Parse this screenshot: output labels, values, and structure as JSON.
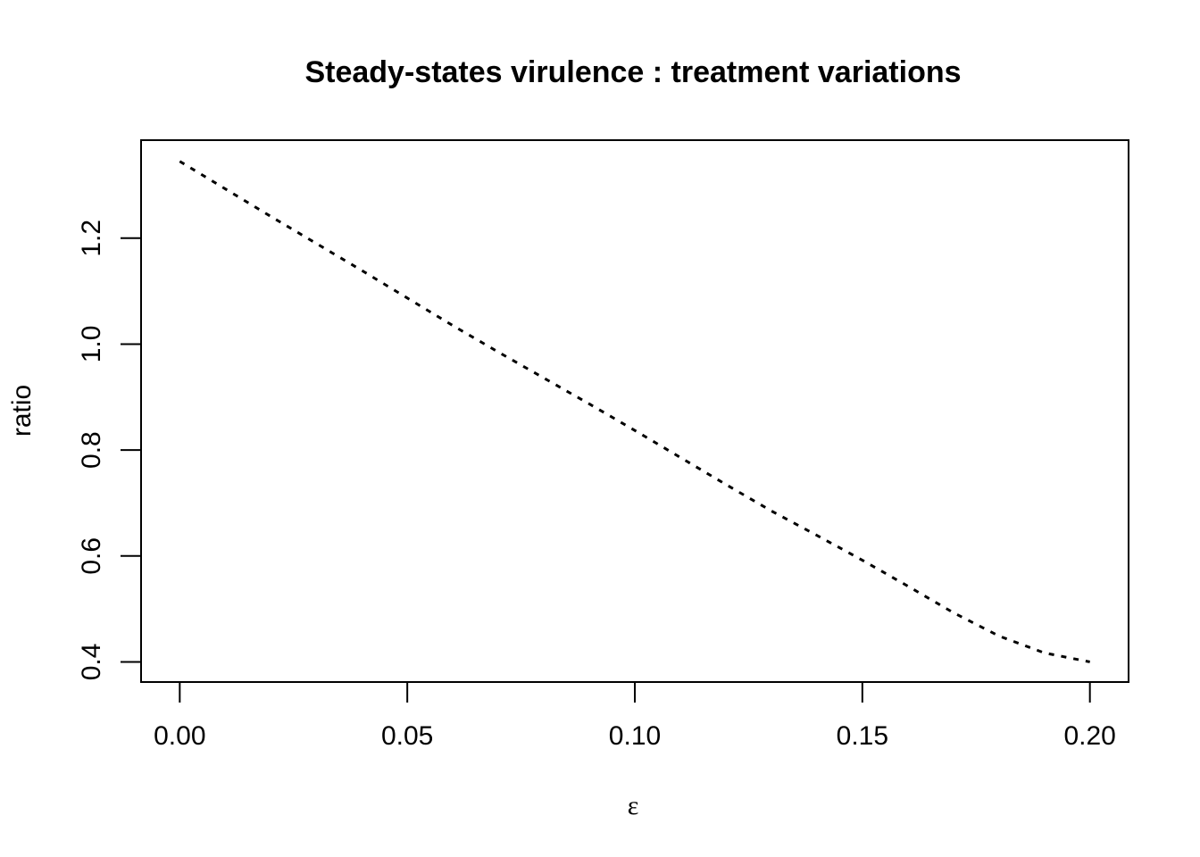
{
  "chart_data": {
    "type": "line",
    "title": "Steady-states virulence : treatment variations",
    "xlabel": "ε",
    "ylabel": "ratio",
    "xlim": [
      -0.0085,
      0.2085
    ],
    "ylim": [
      0.362,
      1.385
    ],
    "x_ticks": [
      {
        "value": 0.0,
        "label": "0.00"
      },
      {
        "value": 0.05,
        "label": "0.05"
      },
      {
        "value": 0.1,
        "label": "0.10"
      },
      {
        "value": 0.15,
        "label": "0.15"
      },
      {
        "value": 0.2,
        "label": "0.20"
      }
    ],
    "y_ticks": [
      {
        "value": 0.4,
        "label": "0.4"
      },
      {
        "value": 0.6,
        "label": "0.6"
      },
      {
        "value": 0.8,
        "label": "0.8"
      },
      {
        "value": 1.0,
        "label": "1.0"
      },
      {
        "value": 1.2,
        "label": "1.2"
      }
    ],
    "grid": false,
    "legend": "none",
    "series": [
      {
        "line_style": "dotted",
        "color": "#000000",
        "x": [
          0.0,
          0.01,
          0.02,
          0.03,
          0.04,
          0.05,
          0.06,
          0.07,
          0.08,
          0.09,
          0.1,
          0.11,
          0.12,
          0.13,
          0.14,
          0.15,
          0.16,
          0.17,
          0.18,
          0.19,
          0.2
        ],
        "y": [
          1.345,
          1.293,
          1.241,
          1.19,
          1.139,
          1.087,
          1.035,
          0.985,
          0.936,
          0.887,
          0.837,
          0.786,
          0.735,
          0.685,
          0.639,
          0.592,
          0.543,
          0.493,
          0.449,
          0.417,
          0.4
        ]
      }
    ]
  }
}
